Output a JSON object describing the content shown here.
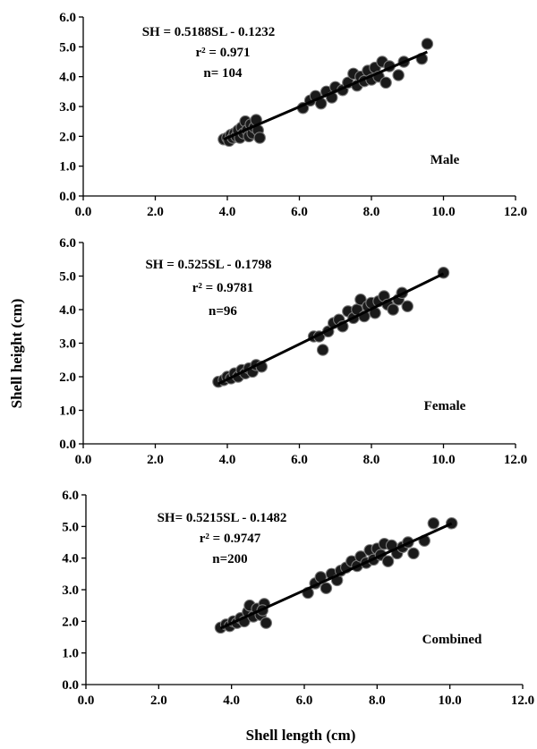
{
  "figure": {
    "ylabel": "Shell  height (cm)",
    "xlabel": "Shell length (cm)"
  },
  "chart_data": [
    {
      "type": "scatter",
      "label": "Male",
      "equation": "SH = 0.5188SL - 0.1232",
      "r2": "r² = 0.971",
      "n": "n= 104",
      "xlim": [
        0,
        12
      ],
      "ylim": [
        0,
        6
      ],
      "xticks": [
        "0.0",
        "2.0",
        "4.0",
        "6.0",
        "8.0",
        "10.0",
        "12.0"
      ],
      "yticks": [
        "0.0",
        "1.0",
        "2.0",
        "3.0",
        "4.0",
        "5.0",
        "6.0"
      ],
      "fit": {
        "slope": 0.5188,
        "intercept": -0.1232,
        "x_range": [
          3.9,
          9.55
        ]
      },
      "points": [
        [
          3.9,
          1.9
        ],
        [
          4.0,
          1.95
        ],
        [
          4.05,
          1.85
        ],
        [
          4.1,
          2.05
        ],
        [
          4.15,
          1.95
        ],
        [
          4.2,
          2.1
        ],
        [
          4.25,
          2.0
        ],
        [
          4.3,
          2.2
        ],
        [
          4.35,
          1.95
        ],
        [
          4.4,
          2.3
        ],
        [
          4.45,
          2.1
        ],
        [
          4.5,
          2.5
        ],
        [
          4.55,
          2.2
        ],
        [
          4.6,
          2.0
        ],
        [
          4.65,
          2.4
        ],
        [
          4.7,
          2.1
        ],
        [
          4.75,
          2.3
        ],
        [
          4.8,
          2.55
        ],
        [
          4.85,
          2.2
        ],
        [
          4.9,
          1.95
        ],
        [
          6.1,
          2.95
        ],
        [
          6.3,
          3.2
        ],
        [
          6.45,
          3.35
        ],
        [
          6.6,
          3.1
        ],
        [
          6.75,
          3.5
        ],
        [
          6.9,
          3.3
        ],
        [
          7.0,
          3.65
        ],
        [
          7.2,
          3.55
        ],
        [
          7.35,
          3.8
        ],
        [
          7.5,
          4.1
        ],
        [
          7.6,
          3.7
        ],
        [
          7.7,
          4.0
        ],
        [
          7.8,
          3.85
        ],
        [
          7.9,
          4.2
        ],
        [
          8.0,
          3.9
        ],
        [
          8.1,
          4.3
        ],
        [
          8.2,
          4.0
        ],
        [
          8.3,
          4.5
        ],
        [
          8.4,
          3.8
        ],
        [
          8.5,
          4.35
        ],
        [
          8.75,
          4.05
        ],
        [
          8.9,
          4.5
        ],
        [
          9.4,
          4.6
        ],
        [
          9.55,
          5.1
        ]
      ]
    },
    {
      "type": "scatter",
      "label": "Female",
      "equation": "SH = 0.525SL - 0.1798",
      "r2": "r² = 0.9781",
      "n": "n=96",
      "xlim": [
        0,
        12
      ],
      "ylim": [
        0,
        6
      ],
      "xticks": [
        "0.0",
        "2.0",
        "4.0",
        "6.0",
        "8.0",
        "10.0",
        "12.0"
      ],
      "yticks": [
        "0.0",
        "1.0",
        "2.0",
        "3.0",
        "4.0",
        "5.0",
        "6.0"
      ],
      "fit": {
        "slope": 0.525,
        "intercept": -0.1798,
        "x_range": [
          3.75,
          10.0
        ]
      },
      "points": [
        [
          3.75,
          1.85
        ],
        [
          3.9,
          1.9
        ],
        [
          4.0,
          2.0
        ],
        [
          4.1,
          1.95
        ],
        [
          4.2,
          2.1
        ],
        [
          4.3,
          2.0
        ],
        [
          4.4,
          2.2
        ],
        [
          4.5,
          2.1
        ],
        [
          4.6,
          2.25
        ],
        [
          4.7,
          2.15
        ],
        [
          4.8,
          2.35
        ],
        [
          4.95,
          2.3
        ],
        [
          6.4,
          3.2
        ],
        [
          6.55,
          3.2
        ],
        [
          6.65,
          2.8
        ],
        [
          6.8,
          3.35
        ],
        [
          6.95,
          3.6
        ],
        [
          7.1,
          3.7
        ],
        [
          7.2,
          3.5
        ],
        [
          7.35,
          3.95
        ],
        [
          7.5,
          3.75
        ],
        [
          7.6,
          4.0
        ],
        [
          7.7,
          4.3
        ],
        [
          7.8,
          3.8
        ],
        [
          7.9,
          4.1
        ],
        [
          8.0,
          4.2
        ],
        [
          8.1,
          3.9
        ],
        [
          8.2,
          4.25
        ],
        [
          8.35,
          4.4
        ],
        [
          8.45,
          4.15
        ],
        [
          8.6,
          4.0
        ],
        [
          8.75,
          4.3
        ],
        [
          8.85,
          4.5
        ],
        [
          9.0,
          4.1
        ],
        [
          10.0,
          5.1
        ]
      ]
    },
    {
      "type": "scatter",
      "label": "Combined",
      "equation": "SH= 0.5215SL - 0.1482",
      "r2": "r² = 0.9747",
      "n": "n=200",
      "xlim": [
        0,
        12
      ],
      "ylim": [
        0,
        6
      ],
      "xticks": [
        "0.0",
        "2.0",
        "4.0",
        "6.0",
        "8.0",
        "10.0",
        "12.0"
      ],
      "yticks": [
        "0.0",
        "1.0",
        "2.0",
        "3.0",
        "4.0",
        "5.0",
        "6.0"
      ],
      "fit": {
        "slope": 0.5215,
        "intercept": -0.1482,
        "x_range": [
          3.7,
          10.05
        ]
      },
      "points": [
        [
          3.7,
          1.8
        ],
        [
          3.85,
          1.9
        ],
        [
          3.95,
          1.85
        ],
        [
          4.05,
          2.0
        ],
        [
          4.15,
          1.95
        ],
        [
          4.25,
          2.1
        ],
        [
          4.35,
          2.0
        ],
        [
          4.45,
          2.3
        ],
        [
          4.5,
          2.5
        ],
        [
          4.6,
          2.15
        ],
        [
          4.7,
          2.4
        ],
        [
          4.8,
          2.2
        ],
        [
          4.9,
          2.55
        ],
        [
          4.95,
          1.95
        ],
        [
          4.85,
          2.35
        ],
        [
          6.1,
          2.9
        ],
        [
          6.3,
          3.2
        ],
        [
          6.45,
          3.4
        ],
        [
          6.6,
          3.05
        ],
        [
          6.75,
          3.5
        ],
        [
          6.9,
          3.3
        ],
        [
          7.0,
          3.6
        ],
        [
          7.15,
          3.7
        ],
        [
          7.3,
          3.9
        ],
        [
          7.45,
          3.75
        ],
        [
          7.55,
          4.05
        ],
        [
          7.7,
          3.85
        ],
        [
          7.8,
          4.25
        ],
        [
          7.9,
          3.95
        ],
        [
          8.0,
          4.3
        ],
        [
          8.1,
          4.1
        ],
        [
          8.2,
          4.45
        ],
        [
          8.3,
          3.9
        ],
        [
          8.4,
          4.4
        ],
        [
          8.55,
          4.15
        ],
        [
          8.7,
          4.35
        ],
        [
          8.85,
          4.5
        ],
        [
          9.0,
          4.15
        ],
        [
          9.3,
          4.55
        ],
        [
          9.55,
          5.1
        ],
        [
          10.05,
          5.1
        ]
      ]
    }
  ]
}
